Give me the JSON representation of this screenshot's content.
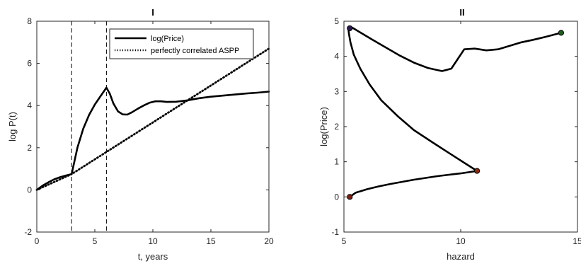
{
  "chart_data": [
    {
      "type": "line",
      "title": "I",
      "xlabel": "t, years",
      "ylabel": "log P(t)",
      "xlim": [
        0,
        20
      ],
      "ylim": [
        -2,
        8
      ],
      "xticks": [
        "0",
        "5",
        "10",
        "15",
        "20"
      ],
      "yticks": [
        "-2",
        "0",
        "2",
        "4",
        "6",
        "8"
      ],
      "grid": false,
      "legend_placement": "top-right",
      "vlines": [
        3,
        6
      ],
      "series": [
        {
          "name": "log(Price)",
          "style": "solid",
          "color": "#000000",
          "x": [
            0,
            0.5,
            1,
            1.5,
            2,
            2.5,
            3,
            3.5,
            4,
            4.5,
            5,
            5.5,
            6,
            6.3,
            6.6,
            7,
            7.4,
            7.8,
            8.2,
            8.7,
            9.2,
            9.7,
            10.2,
            10.7,
            11.2,
            12,
            13,
            14,
            15,
            16,
            17,
            18,
            19,
            20
          ],
          "y": [
            0,
            0.2,
            0.36,
            0.5,
            0.6,
            0.68,
            0.75,
            2.0,
            2.9,
            3.55,
            4.05,
            4.45,
            4.85,
            4.55,
            4.1,
            3.72,
            3.58,
            3.57,
            3.68,
            3.85,
            4.0,
            4.13,
            4.2,
            4.2,
            4.17,
            4.18,
            4.25,
            4.35,
            4.42,
            4.47,
            4.52,
            4.57,
            4.61,
            4.66
          ]
        },
        {
          "name": "perfectly correlated ASPP",
          "style": "dotted",
          "color": "#000000",
          "x": [
            0,
            3,
            20
          ],
          "y": [
            0,
            0.75,
            6.7
          ]
        }
      ]
    },
    {
      "type": "line",
      "title": "II",
      "xlabel": "hazard",
      "ylabel": "log(Price)",
      "xlim": [
        5,
        15
      ],
      "ylim": [
        -1,
        5
      ],
      "xticks": [
        "5",
        "10",
        "15"
      ],
      "yticks": [
        "-1",
        "0",
        "1",
        "2",
        "3",
        "4",
        "5"
      ],
      "grid": false,
      "series": [
        {
          "color": "#000000",
          "x": [
            5.25,
            5.5,
            6,
            6.5,
            7,
            7.5,
            8,
            8.5,
            9,
            9.5,
            10,
            10.4,
            10.7,
            10.2,
            9.5,
            8.8,
            8.0,
            7.3,
            6.6,
            6.1,
            5.7,
            5.42,
            5.28,
            5.22,
            5.2,
            5.2,
            5.23,
            5.28,
            5.4,
            5.7,
            6.2,
            6.8,
            7.4,
            8.0,
            8.6,
            9.2,
            9.6,
            9.9,
            10.15,
            10.6,
            11.1,
            11.6,
            12.1,
            12.6,
            13.1,
            13.6,
            14.3
          ],
          "y": [
            0.0,
            0.12,
            0.22,
            0.3,
            0.37,
            0.43,
            0.49,
            0.54,
            0.59,
            0.63,
            0.67,
            0.71,
            0.74,
            0.95,
            1.25,
            1.55,
            1.9,
            2.3,
            2.75,
            3.2,
            3.65,
            4.05,
            4.4,
            4.62,
            4.72,
            4.8,
            4.84,
            4.84,
            4.8,
            4.68,
            4.48,
            4.25,
            4.02,
            3.82,
            3.67,
            3.58,
            3.65,
            3.95,
            4.2,
            4.22,
            4.17,
            4.2,
            4.3,
            4.4,
            4.47,
            4.55,
            4.67
          ]
        }
      ],
      "markers": [
        {
          "x": 5.25,
          "y": 0.0,
          "color": "#7a1f12"
        },
        {
          "x": 10.7,
          "y": 0.74,
          "color": "#8a2a10"
        },
        {
          "x": 5.25,
          "y": 4.8,
          "color": "#2a1850"
        },
        {
          "x": 14.3,
          "y": 4.67,
          "color": "#1d5e1d"
        }
      ]
    }
  ]
}
